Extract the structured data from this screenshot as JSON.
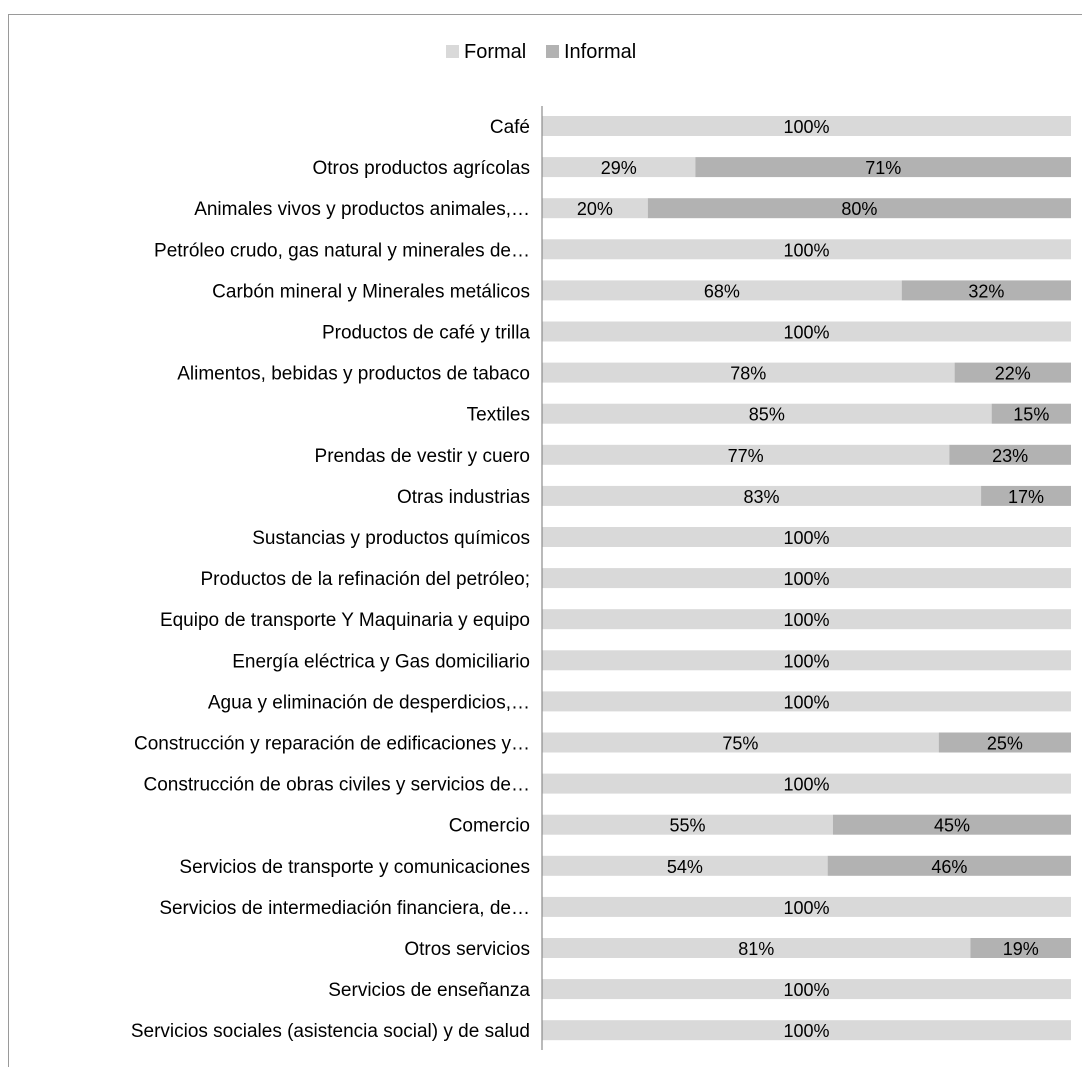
{
  "chart_data": {
    "type": "bar",
    "orientation": "horizontal",
    "stacked": "percent",
    "legend_position": "top",
    "grid": false,
    "xlim": [
      0,
      100
    ],
    "categories": [
      "Café",
      "Otros productos agrícolas",
      "Animales vivos y productos animales,…",
      "Petróleo crudo, gas natural y minerales de…",
      "Carbón mineral y Minerales metálicos",
      "Productos de café y trilla",
      "Alimentos, bebidas y productos de tabaco",
      "Textiles",
      "Prendas de vestir y cuero",
      "Otras industrias",
      "Sustancias y productos químicos",
      "Productos de la refinación del petróleo;",
      "Equipo de transporte Y Maquinaria y equipo",
      "Energía eléctrica y Gas domiciliario",
      "Agua y eliminación de desperdicios,…",
      "Construcción y reparación de edificaciones y…",
      "Construcción de obras civiles y servicios de…",
      "Comercio",
      "Servicios de transporte y comunicaciones",
      "Servicios de intermediación financiera, de…",
      "Otros servicios",
      "Servicios de enseñanza",
      "Servicios sociales (asistencia social) y de salud"
    ],
    "series": [
      {
        "name": "Formal",
        "color": "#d9d9d9",
        "values": [
          100,
          29,
          20,
          100,
          68,
          100,
          78,
          85,
          77,
          83,
          100,
          100,
          100,
          100,
          100,
          75,
          100,
          55,
          54,
          100,
          81,
          100,
          100
        ],
        "labels": [
          "100%",
          "29%",
          "20%",
          "100%",
          "68%",
          "100%",
          "78%",
          "85%",
          "77%",
          "83%",
          "100%",
          "100%",
          "100%",
          "100%",
          "100%",
          "75%",
          "100%",
          "55%",
          "54%",
          "100%",
          "81%",
          "100%",
          "100%"
        ]
      },
      {
        "name": "Informal",
        "color": "#b2b2b2",
        "values": [
          0,
          71,
          80,
          0,
          32,
          0,
          22,
          15,
          23,
          17,
          0,
          0,
          0,
          0,
          0,
          25,
          0,
          45,
          46,
          0,
          19,
          0,
          0
        ],
        "labels": [
          "",
          "71%",
          "80%",
          "",
          "32%",
          "",
          "22%",
          "15%",
          "23%",
          "17%",
          "",
          "",
          "",
          "",
          "",
          "25%",
          "",
          "45%",
          "46%",
          "",
          "19%",
          "",
          ""
        ]
      }
    ]
  }
}
